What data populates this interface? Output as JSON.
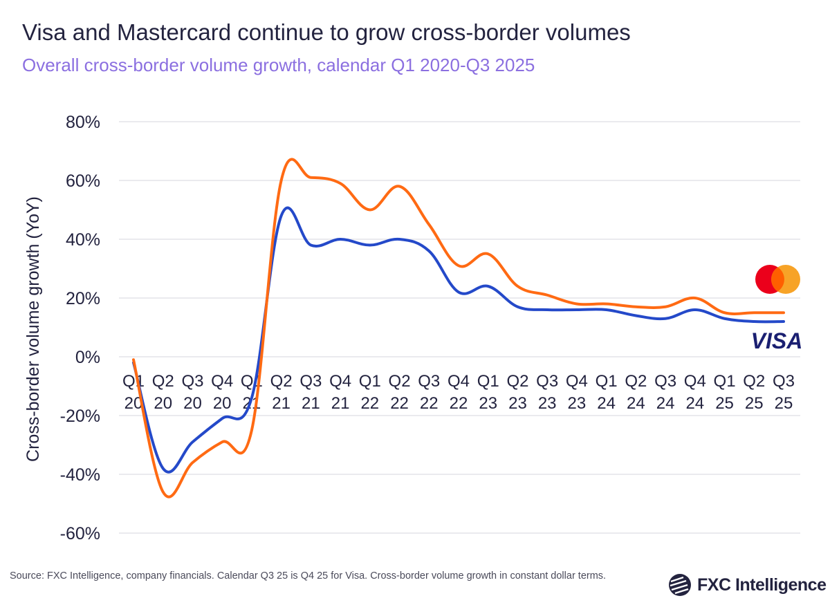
{
  "title": "Visa and Mastercard continue to grow cross-border volumes",
  "subtitle": "Overall cross-border volume growth, calendar Q1 2020-Q3 2025",
  "source": "Source: FXC Intelligence, company financials. Calendar Q3 25 is Q4 25 for Visa. Cross-border volume growth in constant dollar terms.",
  "logo_text": "FXC Intelligence",
  "chart_data": {
    "type": "line",
    "title": "Visa and Mastercard continue to grow cross-border volumes",
    "subtitle": "Overall cross-border volume growth, calendar Q1 2020-Q3 2025",
    "ylabel": "Cross-border volume growth (YoY)",
    "xlabel": "",
    "ylim": [
      -60,
      80
    ],
    "yticks": [
      80,
      60,
      40,
      20,
      0,
      -20,
      -40,
      -60
    ],
    "ytick_labels": [
      "80%",
      "60%",
      "40%",
      "20%",
      "0%",
      "-20%",
      "-40%",
      "-60%"
    ],
    "grid": true,
    "legend": "logos at right end of lines",
    "categories": [
      [
        "Q1",
        "20"
      ],
      [
        "Q2",
        "20"
      ],
      [
        "Q3",
        "20"
      ],
      [
        "Q4",
        "20"
      ],
      [
        "Q1",
        "21"
      ],
      [
        "Q2",
        "21"
      ],
      [
        "Q3",
        "21"
      ],
      [
        "Q4",
        "21"
      ],
      [
        "Q1",
        "22"
      ],
      [
        "Q2",
        "22"
      ],
      [
        "Q3",
        "22"
      ],
      [
        "Q4",
        "22"
      ],
      [
        "Q1",
        "23"
      ],
      [
        "Q2",
        "23"
      ],
      [
        "Q3",
        "23"
      ],
      [
        "Q4",
        "23"
      ],
      [
        "Q1",
        "24"
      ],
      [
        "Q2",
        "24"
      ],
      [
        "Q3",
        "24"
      ],
      [
        "Q4",
        "24"
      ],
      [
        "Q1",
        "25"
      ],
      [
        "Q2",
        "25"
      ],
      [
        "Q3",
        "25"
      ]
    ],
    "series": [
      {
        "name": "Mastercard",
        "color": "#ff6a13",
        "values": [
          -1,
          -46,
          -36,
          -29,
          -25,
          60,
          61,
          59,
          50,
          58,
          45,
          31,
          35,
          24,
          21,
          18,
          18,
          17,
          17,
          20,
          15,
          15,
          15
        ]
      },
      {
        "name": "Visa",
        "color": "#2449c9",
        "values": [
          -2,
          -38,
          -29,
          -21,
          -14,
          48,
          38,
          40,
          38,
          40,
          36,
          22,
          24,
          17,
          16,
          16,
          16,
          14,
          13,
          16,
          13,
          12,
          12
        ]
      }
    ]
  },
  "logos": {
    "mastercard_colors": [
      "#eb001b",
      "#f79e1b"
    ],
    "visa_color": "#1a1f71",
    "visa_text": "VISA"
  }
}
